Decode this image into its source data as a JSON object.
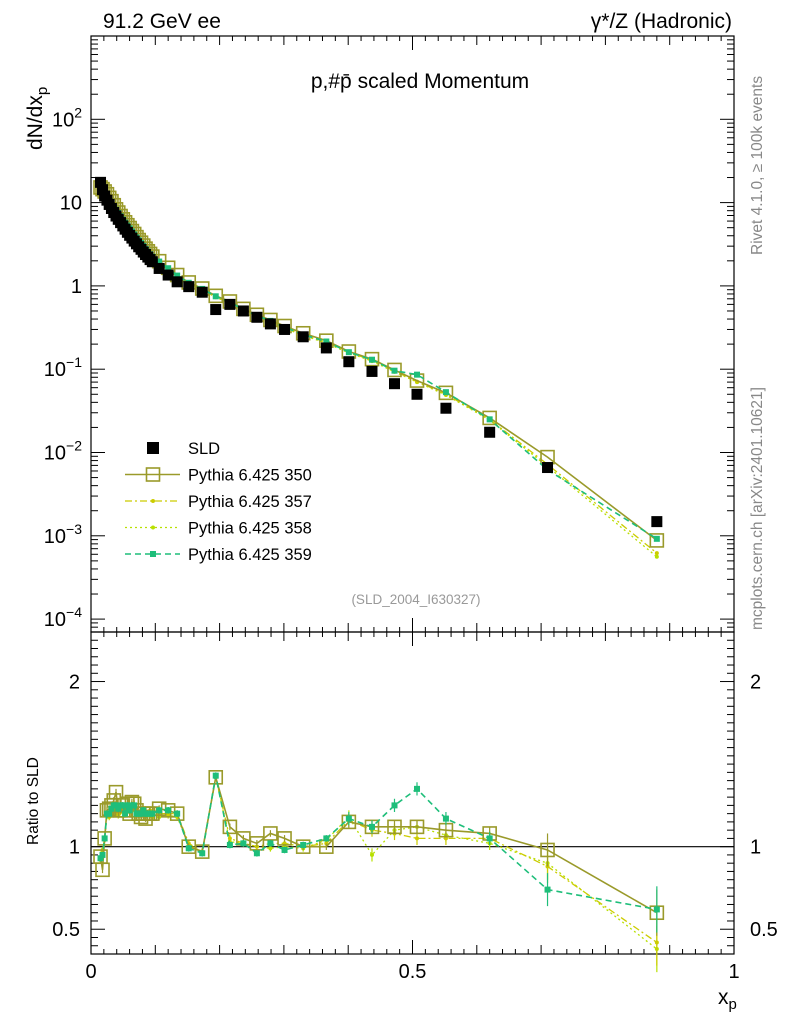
{
  "header": {
    "left": "91.2 GeV ee",
    "right": "γ*/Z (Hadronic)"
  },
  "side_labels": {
    "rivet": "Rivet 4.1.0, ≥ 100k events",
    "mcplots": "mcplots.cern.ch [arXiv:2401.10621]"
  },
  "colors": {
    "data": "#000000",
    "p350": "#9a9a2a",
    "p357": "#cccc00",
    "p358": "#b8e000",
    "p359": "#1ebe7a"
  },
  "chart_data": [
    {
      "type": "scatter",
      "panel": "main",
      "title": "p,#p̄ scaled Momentum",
      "ylabel": "dN/dx_p",
      "ylabel_main": "dN/dx",
      "ylabel_sub": "p",
      "analysis_id": "(SLD_2004_I630327)",
      "xlim": [
        0,
        1
      ],
      "ylim": [
        7e-05,
        1000
      ],
      "yscale": "log",
      "ytick_labels": [
        {
          "value": 0.0001,
          "base": "10",
          "exp": "−4"
        },
        {
          "value": 0.001,
          "base": "10",
          "exp": "−3"
        },
        {
          "value": 0.01,
          "base": "10",
          "exp": "−2"
        },
        {
          "value": 0.1,
          "base": "10",
          "exp": "−1"
        },
        {
          "value": 1,
          "base": "1",
          "exp": ""
        },
        {
          "value": 10,
          "base": "10",
          "exp": ""
        },
        {
          "value": 100,
          "base": "10",
          "exp": "2"
        }
      ],
      "legend": {
        "placement": "middle-left",
        "entries": [
          "SLD",
          "Pythia 6.425 350",
          "Pythia 6.425 357",
          "Pythia 6.425 358",
          "Pythia 6.425 359"
        ]
      },
      "x": [
        0.0148,
        0.0179,
        0.0212,
        0.0248,
        0.0283,
        0.0318,
        0.0354,
        0.0389,
        0.0424,
        0.046,
        0.0495,
        0.053,
        0.0566,
        0.0601,
        0.0636,
        0.0672,
        0.0707,
        0.0742,
        0.0778,
        0.0813,
        0.0848,
        0.0884,
        0.0919,
        0.0954,
        0.106,
        0.12,
        0.134,
        0.152,
        0.173,
        0.194,
        0.216,
        0.237,
        0.258,
        0.279,
        0.301,
        0.33,
        0.366,
        0.401,
        0.437,
        0.472,
        0.507,
        0.552,
        0.62,
        0.71,
        0.88
      ],
      "series": [
        {
          "name": "SLD",
          "marker": "filled-square",
          "values": [
            17.5,
            14.3,
            12.0,
            10.7,
            9.5,
            8.5,
            7.6,
            6.9,
            6.3,
            5.75,
            5.25,
            4.8,
            4.4,
            4.05,
            3.75,
            3.45,
            3.2,
            2.95,
            2.75,
            2.55,
            2.38,
            2.22,
            2.07,
            1.95,
            1.62,
            1.35,
            1.12,
            0.98,
            0.84,
            0.52,
            0.6,
            0.5,
            0.42,
            0.35,
            0.3,
            0.245,
            0.18,
            0.123,
            0.094,
            0.067,
            0.05,
            0.034,
            0.0175,
            0.0066,
            0.00148
          ]
        },
        {
          "name": "Pythia 6.425 350",
          "marker": "open-square",
          "values": [
            15.2,
            14.5,
            13.6,
            12.6,
            11.4,
            10.4,
            9.3,
            8.3,
            7.6,
            6.9,
            6.3,
            5.8,
            5.35,
            4.95,
            4.55,
            4.2,
            3.85,
            3.55,
            3.3,
            3.05,
            2.8,
            2.6,
            2.42,
            2.25,
            1.98,
            1.65,
            1.35,
            1.1,
            0.93,
            0.76,
            0.65,
            0.53,
            0.45,
            0.39,
            0.33,
            0.27,
            0.22,
            0.163,
            0.132,
            0.098,
            0.073,
            0.052,
            0.026,
            0.0088,
            0.00088
          ]
        },
        {
          "name": "Pythia 6.425 357",
          "marker": "dot-dashdot",
          "values": [
            14.6,
            14.0,
            13.1,
            12.1,
            11.0,
            10.0,
            9.0,
            8.1,
            7.4,
            6.75,
            6.2,
            5.7,
            5.25,
            4.85,
            4.45,
            4.1,
            3.8,
            3.5,
            3.25,
            3.0,
            2.76,
            2.57,
            2.38,
            2.22,
            1.95,
            1.62,
            1.32,
            1.08,
            0.91,
            0.74,
            0.63,
            0.52,
            0.44,
            0.38,
            0.32,
            0.26,
            0.21,
            0.16,
            0.128,
            0.095,
            0.071,
            0.05,
            0.025,
            0.0072,
            0.00062
          ]
        },
        {
          "name": "Pythia 6.425 358",
          "marker": "dot-dotted",
          "values": [
            14.5,
            13.9,
            13.0,
            12.0,
            10.9,
            9.9,
            8.9,
            8.0,
            7.3,
            6.7,
            6.15,
            5.65,
            5.2,
            4.8,
            4.4,
            4.07,
            3.77,
            3.48,
            3.22,
            2.98,
            2.74,
            2.55,
            2.36,
            2.2,
            1.93,
            1.6,
            1.3,
            1.06,
            0.9,
            0.73,
            0.62,
            0.51,
            0.43,
            0.37,
            0.31,
            0.255,
            0.205,
            0.157,
            0.125,
            0.093,
            0.07,
            0.049,
            0.0245,
            0.0068,
            0.00056
          ]
        },
        {
          "name": "Pythia 6.425 359",
          "marker": "filled-small-square-dashed",
          "values": [
            14.8,
            14.2,
            13.3,
            12.3,
            11.2,
            10.2,
            9.1,
            8.2,
            7.5,
            6.85,
            6.25,
            5.75,
            5.3,
            4.9,
            4.5,
            4.15,
            3.82,
            3.52,
            3.27,
            3.02,
            2.78,
            2.58,
            2.4,
            2.24,
            1.96,
            1.63,
            1.33,
            1.09,
            0.92,
            0.75,
            0.64,
            0.52,
            0.44,
            0.38,
            0.32,
            0.26,
            0.215,
            0.16,
            0.13,
            0.096,
            0.086,
            0.053,
            0.025,
            0.0062,
            0.00092
          ]
        }
      ]
    },
    {
      "type": "line",
      "panel": "ratio",
      "ylabel": "Ratio to SLD",
      "xlabel": "x_p",
      "xlabel_main": "x",
      "xlabel_sub": "p",
      "xlim": [
        0,
        1
      ],
      "ylim": [
        0.35,
        2.3
      ],
      "ytick_labels": [
        {
          "value": 0.5,
          "label": "0.5"
        },
        {
          "value": 1,
          "label": "1"
        },
        {
          "value": 2,
          "label": "2"
        }
      ],
      "xtick_labels": [
        {
          "value": 0,
          "label": "0"
        },
        {
          "value": 0.5,
          "label": "0.5"
        },
        {
          "value": 1,
          "label": "1"
        }
      ],
      "x": [
        0.0148,
        0.0179,
        0.0212,
        0.0248,
        0.0283,
        0.0318,
        0.0354,
        0.0389,
        0.0424,
        0.046,
        0.0495,
        0.053,
        0.0566,
        0.0601,
        0.0636,
        0.0672,
        0.0707,
        0.0742,
        0.0778,
        0.0813,
        0.0848,
        0.0884,
        0.0919,
        0.0954,
        0.106,
        0.12,
        0.134,
        0.152,
        0.173,
        0.194,
        0.216,
        0.237,
        0.258,
        0.279,
        0.301,
        0.33,
        0.366,
        0.401,
        0.437,
        0.472,
        0.507,
        0.552,
        0.62,
        0.71,
        0.88
      ],
      "series": [
        {
          "name": "Pythia 6.425 350",
          "values": [
            0.94,
            0.86,
            1.05,
            1.22,
            1.23,
            1.25,
            1.28,
            1.33,
            1.22,
            1.22,
            1.25,
            1.22,
            1.26,
            1.2,
            1.27,
            1.26,
            1.22,
            1.2,
            1.18,
            1.2,
            1.17,
            1.2,
            1.2,
            1.2,
            1.23,
            1.22,
            1.2,
            1.0,
            0.97,
            1.42,
            1.12,
            1.05,
            1.02,
            1.08,
            1.05,
            1.0,
            1.0,
            1.15,
            1.12,
            1.12,
            1.12,
            1.1,
            1.08,
            0.98,
            0.6
          ]
        },
        {
          "name": "Pythia 6.425 357",
          "values": [
            0.92,
            0.98,
            1.05,
            1.2,
            1.19,
            1.21,
            1.22,
            1.25,
            1.2,
            1.22,
            1.25,
            1.22,
            1.23,
            1.22,
            1.24,
            1.24,
            1.22,
            1.2,
            1.2,
            1.22,
            1.2,
            1.2,
            1.22,
            1.2,
            1.2,
            1.2,
            1.2,
            1.02,
            0.97,
            1.42,
            1.05,
            1.02,
            1.0,
            1.02,
            1.02,
            1.0,
            1.02,
            1.16,
            1.1,
            1.08,
            1.05,
            1.05,
            1.05,
            0.88,
            0.42
          ]
        },
        {
          "name": "Pythia 6.425 358",
          "values": [
            0.92,
            0.97,
            1.04,
            1.19,
            1.18,
            1.2,
            1.21,
            1.24,
            1.19,
            1.21,
            1.23,
            1.2,
            1.22,
            1.21,
            1.22,
            1.22,
            1.21,
            1.19,
            1.19,
            1.2,
            1.19,
            1.19,
            1.21,
            1.18,
            1.18,
            1.19,
            1.18,
            1.01,
            0.97,
            1.42,
            1.03,
            1.02,
            1.0,
            0.99,
            1.0,
            0.99,
            1.04,
            1.18,
            0.95,
            1.1,
            1.12,
            1.07,
            1.02,
            0.9,
            0.38
          ]
        },
        {
          "name": "Pythia 6.425 359",
          "values": [
            0.93,
            0.95,
            1.05,
            1.2,
            1.2,
            1.23,
            1.25,
            1.25,
            1.23,
            1.25,
            1.25,
            1.2,
            1.25,
            1.22,
            1.25,
            1.25,
            1.2,
            1.2,
            1.2,
            1.22,
            1.2,
            1.2,
            1.2,
            1.2,
            1.22,
            1.22,
            1.2,
            0.99,
            0.96,
            1.43,
            1.01,
            1.02,
            0.96,
            1.02,
            0.98,
            1.01,
            1.05,
            1.17,
            1.12,
            1.25,
            1.35,
            1.17,
            1.05,
            0.74,
            0.62
          ]
        }
      ]
    }
  ]
}
